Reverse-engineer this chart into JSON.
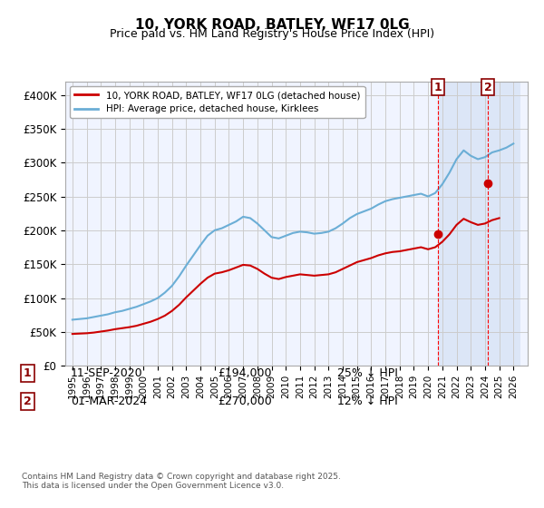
{
  "title": "10, YORK ROAD, BATLEY, WF17 0LG",
  "subtitle": "Price paid vs. HM Land Registry's House Price Index (HPI)",
  "hpi_label": "HPI: Average price, detached house, Kirklees",
  "property_label": "10, YORK ROAD, BATLEY, WF17 0LG (detached house)",
  "footer": "Contains HM Land Registry data © Crown copyright and database right 2025.\nThis data is licensed under the Open Government Licence v3.0.",
  "annotation1": {
    "num": "1",
    "date": "11-SEP-2020",
    "price": "£194,000",
    "hpi": "25% ↓ HPI",
    "x_year": 2020.7
  },
  "annotation2": {
    "num": "2",
    "date": "01-MAR-2024",
    "price": "£270,000",
    "hpi": "12% ↓ HPI",
    "x_year": 2024.2
  },
  "vline1_x": 2020.7,
  "vline2_x": 2024.2,
  "shaded_region_start": 2020.7,
  "shaded_region_end": 2026.5,
  "ylim": [
    0,
    420000
  ],
  "xlim": [
    1994.5,
    2027.0
  ],
  "yticks": [
    0,
    50000,
    100000,
    150000,
    200000,
    250000,
    300000,
    350000,
    400000
  ],
  "ytick_labels": [
    "£0",
    "£50K",
    "£100K",
    "£150K",
    "£200K",
    "£250K",
    "£300K",
    "£350K",
    "£400K"
  ],
  "hpi_color": "#6baed6",
  "property_color": "#cc0000",
  "background_color": "#f0f4ff",
  "shaded_color": "#dce6f7",
  "grid_color": "#cccccc",
  "point1_price": 194000,
  "point1_hpi": 259000,
  "point2_price": 270000,
  "point2_hpi": 307000,
  "hpi_data": {
    "years": [
      1995.0,
      1995.5,
      1996.0,
      1996.5,
      1997.0,
      1997.5,
      1998.0,
      1998.5,
      1999.0,
      1999.5,
      2000.0,
      2000.5,
      2001.0,
      2001.5,
      2002.0,
      2002.5,
      2003.0,
      2003.5,
      2004.0,
      2004.5,
      2005.0,
      2005.5,
      2006.0,
      2006.5,
      2007.0,
      2007.5,
      2008.0,
      2008.5,
      2009.0,
      2009.5,
      2010.0,
      2010.5,
      2011.0,
      2011.5,
      2012.0,
      2012.5,
      2013.0,
      2013.5,
      2014.0,
      2014.5,
      2015.0,
      2015.5,
      2016.0,
      2016.5,
      2017.0,
      2017.5,
      2018.0,
      2018.5,
      2019.0,
      2019.5,
      2020.0,
      2020.5,
      2021.0,
      2021.5,
      2022.0,
      2022.5,
      2023.0,
      2023.5,
      2024.0,
      2024.5,
      2025.0,
      2025.5,
      2026.0
    ],
    "values": [
      68000,
      69000,
      70000,
      72000,
      74000,
      76000,
      79000,
      81000,
      84000,
      87000,
      91000,
      95000,
      100000,
      108000,
      118000,
      132000,
      148000,
      163000,
      178000,
      192000,
      200000,
      203000,
      208000,
      213000,
      220000,
      218000,
      210000,
      200000,
      190000,
      188000,
      192000,
      196000,
      198000,
      197000,
      195000,
      196000,
      198000,
      203000,
      210000,
      218000,
      224000,
      228000,
      232000,
      238000,
      243000,
      246000,
      248000,
      250000,
      252000,
      254000,
      250000,
      255000,
      268000,
      285000,
      305000,
      318000,
      310000,
      305000,
      308000,
      315000,
      318000,
      322000,
      328000
    ]
  },
  "property_data": {
    "years": [
      1995.0,
      1995.5,
      1996.0,
      1996.5,
      1997.0,
      1997.5,
      1998.0,
      1998.5,
      1999.0,
      1999.5,
      2000.0,
      2000.5,
      2001.0,
      2001.5,
      2002.0,
      2002.5,
      2003.0,
      2003.5,
      2004.0,
      2004.5,
      2005.0,
      2005.5,
      2006.0,
      2006.5,
      2007.0,
      2007.5,
      2008.0,
      2008.5,
      2009.0,
      2009.5,
      2010.0,
      2010.5,
      2011.0,
      2011.5,
      2012.0,
      2012.5,
      2013.0,
      2013.5,
      2014.0,
      2014.5,
      2015.0,
      2015.5,
      2016.0,
      2016.5,
      2017.0,
      2017.5,
      2018.0,
      2018.5,
      2019.0,
      2019.5,
      2020.0,
      2020.5,
      2021.0,
      2021.5,
      2022.0,
      2022.5,
      2023.0,
      2023.5,
      2024.0,
      2024.5,
      2025.0
    ],
    "values": [
      47000,
      47500,
      48000,
      49000,
      50500,
      52000,
      54000,
      55500,
      57000,
      59000,
      62000,
      65000,
      69000,
      74000,
      81000,
      90000,
      101000,
      111000,
      121000,
      130000,
      136000,
      138000,
      141000,
      145000,
      149000,
      148000,
      143000,
      136000,
      130000,
      128000,
      131000,
      133000,
      135000,
      134000,
      133000,
      134000,
      135000,
      138000,
      143000,
      148000,
      153000,
      156000,
      159000,
      163000,
      166000,
      168000,
      169000,
      171000,
      173000,
      175000,
      172000,
      175000,
      183000,
      194000,
      208000,
      217000,
      212000,
      208000,
      210000,
      215000,
      218000
    ]
  }
}
